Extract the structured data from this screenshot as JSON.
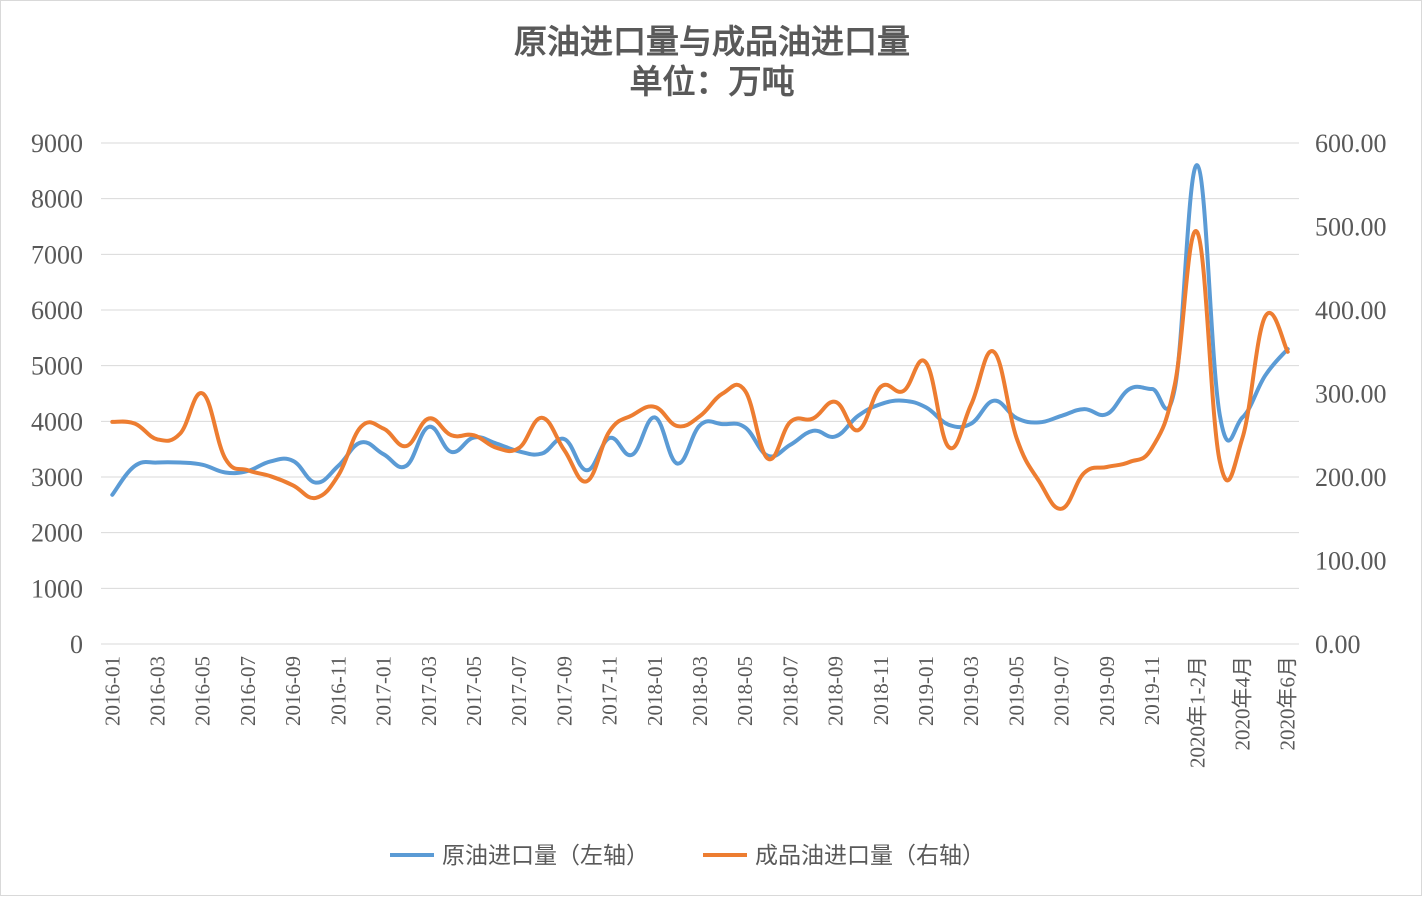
{
  "chart_data": {
    "type": "line",
    "title": "原油进口量与成品油进口量",
    "subtitle": "单位：万吨",
    "categories": [
      "2016-01",
      "2016-02",
      "2016-03",
      "2016-04",
      "2016-05",
      "2016-06",
      "2016-07",
      "2016-08",
      "2016-09",
      "2016-10",
      "2016-11",
      "2016-12",
      "2017-01",
      "2017-02",
      "2017-03",
      "2017-04",
      "2017-05",
      "2017-06",
      "2017-07",
      "2017-08",
      "2017-09",
      "2017-10",
      "2017-11",
      "2017-12",
      "2018-01",
      "2018-02",
      "2018-03",
      "2018-04",
      "2018-05",
      "2018-06",
      "2018-07",
      "2018-08",
      "2018-09",
      "2018-10",
      "2018-11",
      "2018-12",
      "2019-01",
      "2019-02",
      "2019-03",
      "2019-04",
      "2019-05",
      "2019-06",
      "2019-07",
      "2019-08",
      "2019-09",
      "2019-10",
      "2019-11",
      "2019-12",
      "2020年1-2月",
      "2020年3月",
      "2020年4月",
      "2020年5月",
      "2020年6月"
    ],
    "x_tick_labels": [
      "2016-01",
      "",
      "2016-03",
      "",
      "2016-05",
      "",
      "2016-07",
      "",
      "2016-09",
      "",
      "2016-11",
      "",
      "2017-01",
      "",
      "2017-03",
      "",
      "2017-05",
      "",
      "2017-07",
      "",
      "2017-09",
      "",
      "2017-11",
      "",
      "2018-01",
      "",
      "2018-03",
      "",
      "2018-05",
      "",
      "2018-07",
      "",
      "2018-09",
      "",
      "2018-11",
      "",
      "2019-01",
      "",
      "2019-03",
      "",
      "2019-05",
      "",
      "2019-07",
      "",
      "2019-09",
      "",
      "2019-11",
      "",
      "2020年1-2月",
      "",
      "2020年4月",
      "",
      "2020年6月"
    ],
    "left_axis": {
      "ylim": [
        0,
        9000
      ],
      "ticks": [
        "0",
        "1000",
        "2000",
        "3000",
        "4000",
        "5000",
        "6000",
        "7000",
        "8000",
        "9000"
      ]
    },
    "right_axis": {
      "ylim": [
        0,
        600
      ],
      "ticks": [
        "0.00",
        "100.00",
        "200.00",
        "300.00",
        "400.00",
        "500.00",
        "600.00"
      ]
    },
    "grid": true,
    "legend_position": "bottom",
    "series": [
      {
        "name": "原油进口量（左轴）",
        "axis": "left",
        "color": "#5B9BD5",
        "values": [
          2680,
          3200,
          3260,
          3260,
          3220,
          3080,
          3110,
          3280,
          3290,
          2900,
          3200,
          3620,
          3410,
          3200,
          3900,
          3450,
          3710,
          3600,
          3460,
          3420,
          3680,
          3120,
          3700,
          3400,
          4070,
          3240,
          3930,
          3950,
          3890,
          3380,
          3580,
          3830,
          3730,
          4100,
          4310,
          4370,
          4250,
          3940,
          3960,
          4370,
          4060,
          3980,
          4100,
          4220,
          4130,
          4580,
          4580,
          4580,
          8600,
          4100,
          4070,
          4820,
          5300
        ]
      },
      {
        "name": "成品油进口量（右轴）",
        "axis": "right",
        "color": "#ED7D31",
        "values": [
          266,
          264,
          245,
          252,
          300,
          222,
          208,
          201,
          190,
          175,
          202,
          260,
          258,
          237,
          270,
          250,
          250,
          235,
          235,
          271,
          232,
          195,
          255,
          274,
          284,
          261,
          273,
          300,
          303,
          222,
          266,
          270,
          290,
          256,
          308,
          303,
          337,
          236,
          287,
          350,
          247,
          195,
          162,
          205,
          212,
          218,
          235,
          310,
          493,
          218,
          247,
          392,
          350
        ]
      }
    ]
  }
}
